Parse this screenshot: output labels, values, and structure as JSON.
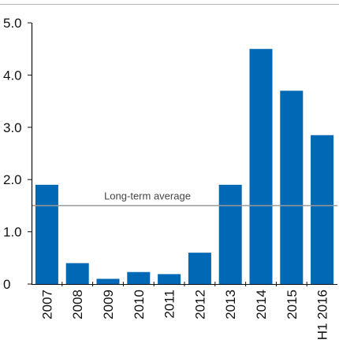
{
  "chart_data": {
    "type": "bar",
    "categories": [
      "2007",
      "2008",
      "2009",
      "2010",
      "2011",
      "2012",
      "2013",
      "2014",
      "2015",
      "H1 2016"
    ],
    "values": [
      1.9,
      0.4,
      0.1,
      0.23,
      0.19,
      0.6,
      1.9,
      4.5,
      3.7,
      2.85
    ],
    "ylim": [
      0,
      5.0
    ],
    "y_ticks": [
      "0",
      "1.0",
      "2.0",
      "3.0",
      "4.0",
      "5.0"
    ],
    "reference_line": {
      "label": "Long-term average",
      "value": 1.5
    },
    "title": "",
    "xlabel": "",
    "ylabel": "",
    "grid": false,
    "colors": {
      "bar": "#0068b4",
      "reference_line": "#9a9a9a",
      "axis": "#111111",
      "top_rule": "#b5b5b5"
    }
  }
}
